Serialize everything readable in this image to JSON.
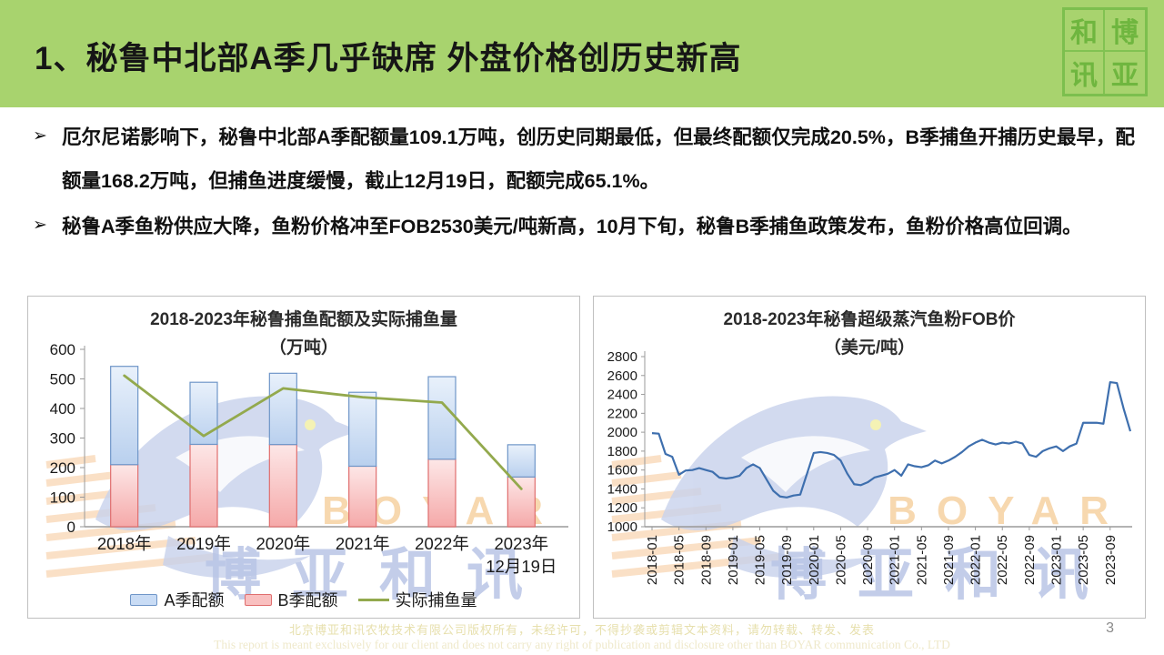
{
  "slide": {
    "title": "1、秘鲁中北部A季几乎缺席 外盘价格创历史新高",
    "page_number": "3",
    "bullet_marker": "➢",
    "seal_chars": [
      "和",
      "博",
      "讯",
      "亚"
    ],
    "bullets": [
      "厄尔尼诺影响下，秘鲁中北部A季配额量109.1万吨，创历史同期最低，但最终配额仅完成20.5%，B季捕鱼开捕历史最早，配额量168.2万吨，但捕鱼进度缓慢，截止12月19日，配额完成65.1%。",
      "秘鲁A季鱼粉供应大降，鱼粉价格冲至FOB2530美元/吨新高，10月下旬，秘鲁B季捕鱼政策发布，鱼粉价格高位回调。"
    ],
    "footer_line1": "北京博亚和讯农牧技术有限公司版权所有，未经许可，不得抄袭或剪辑文本资料，请勿转载、转发、发表",
    "footer_line2": "This report is meant exclusively for our client and does not carry any right of publication and disclosure other than BOYAR communication Co., LTD"
  },
  "watermark": {
    "brand": "BOYAR",
    "brand_cn": "博亚和讯"
  },
  "colors": {
    "header_green": "#a8d36e",
    "axis": "#9a9a9a",
    "text": "#1a1a1a",
    "chart_border": "#c0c0c0",
    "watermark_blue": "#c8d2ec",
    "watermark_orange": "#f6c28e",
    "footer_text": "#e7e0ae"
  },
  "chart_data": [
    {
      "type": "bar",
      "title": "2018-2023年秘鲁捕鱼配额及实际捕鱼量",
      "subtitle": "（万吨）",
      "categories": [
        "2018年",
        "2019年",
        "2020年",
        "2021年",
        "2022年",
        "2023年\n12月19日"
      ],
      "series": [
        {
          "name": "A季配额",
          "role": "bar-stack-top",
          "values": [
            332.5,
            210,
            241,
            250,
            279.2,
            109.1
          ],
          "fill_top": "#e9f1fb",
          "fill_bottom": "#b9d0ee",
          "border": "#6f96c8"
        },
        {
          "name": "B季配额",
          "role": "bar-stack-bottom",
          "values": [
            210,
            278.6,
            278,
            204.7,
            228.3,
            168.2
          ],
          "fill_top": "#fde7e7",
          "fill_bottom": "#f5a9a9",
          "border": "#e06e6e"
        },
        {
          "name": "实际捕鱼量",
          "role": "line",
          "values": [
            511,
            307,
            468,
            438,
            420,
            128
          ],
          "color": "#93a94d"
        }
      ],
      "ylim": [
        0,
        600
      ],
      "yticks": [
        0,
        100,
        200,
        300,
        400,
        500,
        600
      ],
      "legend_position": "bottom",
      "grid": false
    },
    {
      "type": "line",
      "title": "2018-2023年秘鲁超级蒸汽鱼粉FOB价",
      "subtitle": "（美元/吨）",
      "start": "2018-01",
      "interval": "monthly",
      "x_ticks": [
        "2018-01",
        "2018-05",
        "2018-09",
        "2019-01",
        "2019-05",
        "2019-09",
        "2020-01",
        "2020-05",
        "2020-09",
        "2021-01",
        "2021-05",
        "2021-09",
        "2022-01",
        "2022-05",
        "2022-09",
        "2023-01",
        "2023-05",
        "2023-09"
      ],
      "values": [
        1990,
        1985,
        1770,
        1740,
        1550,
        1595,
        1600,
        1620,
        1600,
        1580,
        1520,
        1510,
        1520,
        1540,
        1620,
        1660,
        1620,
        1500,
        1380,
        1320,
        1310,
        1330,
        1340,
        1560,
        1780,
        1790,
        1780,
        1760,
        1700,
        1560,
        1450,
        1440,
        1470,
        1520,
        1540,
        1560,
        1600,
        1540,
        1660,
        1640,
        1630,
        1650,
        1700,
        1670,
        1700,
        1740,
        1790,
        1850,
        1890,
        1920,
        1890,
        1870,
        1890,
        1880,
        1900,
        1880,
        1760,
        1740,
        1800,
        1830,
        1850,
        1800,
        1850,
        1880,
        2100,
        2100,
        2100,
        2090,
        2530,
        2520,
        2250,
        2010
      ],
      "line_color": "#3e6fae",
      "ylim": [
        1000,
        2800
      ],
      "yticks": [
        1000,
        1200,
        1400,
        1600,
        1800,
        2000,
        2200,
        2400,
        2600,
        2800
      ],
      "grid": false
    }
  ]
}
